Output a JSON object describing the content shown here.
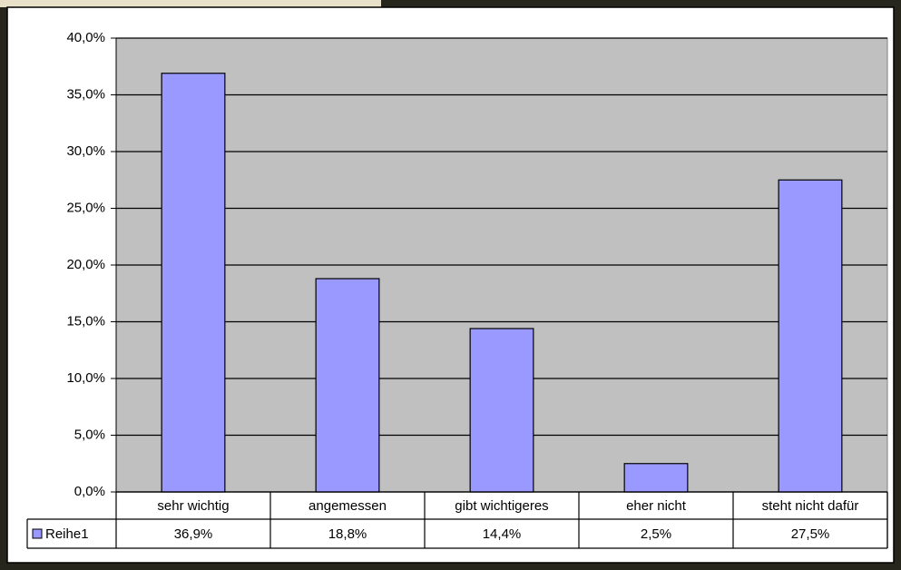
{
  "chart_data": {
    "type": "bar",
    "categories": [
      "sehr wichtig",
      "angemessen",
      "gibt wichtigeres",
      "eher nicht",
      "steht nicht dafür"
    ],
    "series": [
      {
        "name": "Reihe1",
        "color": "#9999ff",
        "values": [
          36.9,
          18.8,
          14.4,
          2.5,
          27.5
        ],
        "value_labels": [
          "36,9%",
          "18,8%",
          "14,4%",
          "2,5%",
          "27,5%"
        ]
      }
    ],
    "ylim": [
      0,
      40
    ],
    "yticks": [
      {
        "value": 0,
        "label": "0,0%"
      },
      {
        "value": 5,
        "label": "5,0%"
      },
      {
        "value": 10,
        "label": "10,0%"
      },
      {
        "value": 15,
        "label": "15,0%"
      },
      {
        "value": 20,
        "label": "20,0%"
      },
      {
        "value": 25,
        "label": "25,0%"
      },
      {
        "value": 30,
        "label": "30,0%"
      },
      {
        "value": 35,
        "label": "35,0%"
      },
      {
        "value": 40,
        "label": "40,0%"
      }
    ],
    "grid": true,
    "data_table": true
  }
}
